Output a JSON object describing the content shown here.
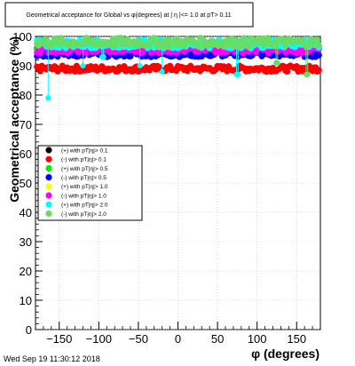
{
  "chart_data": {
    "type": "scatter",
    "title": "Geometrical acceptance for Global vs φ(degrees) at | η |<= 1.0 at pT> 0.11",
    "xlabel": "φ (degrees)",
    "ylabel": "Geometrical acceptance (%)",
    "xlim": [
      -180,
      180
    ],
    "ylim": [
      0,
      100
    ],
    "xticks": [
      -150,
      -100,
      -50,
      0,
      50,
      100,
      150
    ],
    "yticks": [
      0,
      10,
      20,
      30,
      40,
      50,
      60,
      70,
      80,
      90,
      100
    ],
    "grid": true,
    "legend_position": "middle-left",
    "footer": "Wed Sep 19 11:30:12 2018",
    "series": [
      {
        "name": "(+) with pT|η|> 0.1",
        "color": "#000000",
        "base": 96.0,
        "spread": 0.8
      },
      {
        "name": "(-) with pT|η|> 0.1",
        "color": "#ff0000",
        "base": 89.0,
        "spread": 1.0
      },
      {
        "name": "(+) with pT|η|> 0.5",
        "color": "#00ee00",
        "base": 96.5,
        "spread": 1.0
      },
      {
        "name": "(-) with pT|η|> 0.5",
        "color": "#0000ff",
        "base": 94.0,
        "spread": 1.0
      },
      {
        "name": "(+) with pT|η|> 1.0",
        "color": "#ffff00",
        "base": 97.0,
        "spread": 1.0
      },
      {
        "name": "(-) with pT|η|> 1.0",
        "color": "#ff00ff",
        "base": 95.5,
        "spread": 1.2
      },
      {
        "name": "(+) with pT|η|> 2.0",
        "color": "#00ffff",
        "base": 97.5,
        "spread": 1.5
      },
      {
        "name": "(-) with pT|η|> 2.0",
        "color": "#66dd66",
        "base": 98.0,
        "spread": 1.5
      }
    ],
    "dips": [
      {
        "series": 6,
        "x": -164,
        "y": 79
      },
      {
        "series": 6,
        "x": -120,
        "y": 90
      },
      {
        "series": 6,
        "x": -95,
        "y": 93
      },
      {
        "series": 6,
        "x": -48,
        "y": 90
      },
      {
        "series": 6,
        "x": -20,
        "y": 88
      },
      {
        "series": 6,
        "x": 75,
        "y": 87
      },
      {
        "series": 7,
        "x": 125,
        "y": 91
      },
      {
        "series": 7,
        "x": 163,
        "y": 87
      }
    ]
  }
}
